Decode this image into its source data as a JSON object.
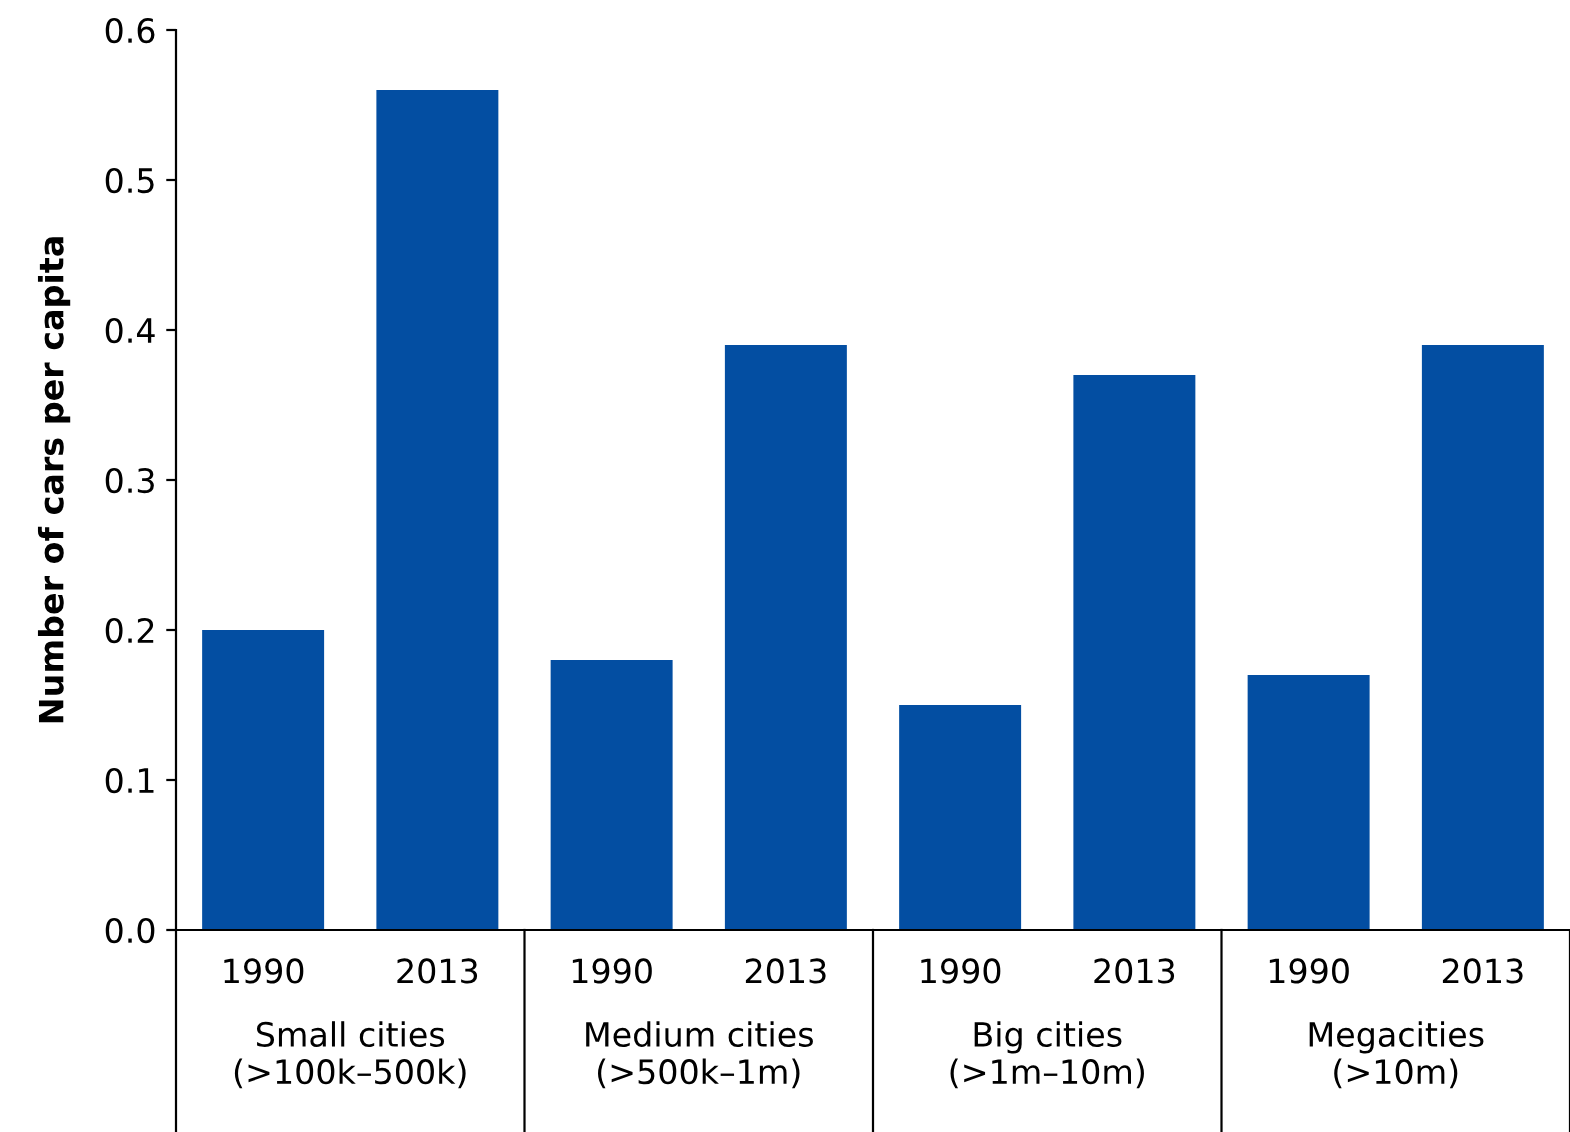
{
  "chart_data": {
    "type": "bar",
    "ylabel": "Number of cars per capita",
    "categories": [
      "1990",
      "2013",
      "1990",
      "2013",
      "1990",
      "2013",
      "1990",
      "2013"
    ],
    "values": [
      0.2,
      0.56,
      0.18,
      0.39,
      0.15,
      0.37,
      0.17,
      0.39
    ],
    "color": "#034ea2",
    "ylim": [
      0,
      0.6
    ],
    "yticks": [
      {
        "value": 0,
        "label": "0.0"
      },
      {
        "value": 0.1,
        "label": "0.1"
      },
      {
        "value": 0.2,
        "label": "0.2"
      },
      {
        "value": 0.3,
        "label": "0.3"
      },
      {
        "value": 0.4,
        "label": "0.4"
      },
      {
        "value": 0.5,
        "label": "0.5"
      },
      {
        "value": 0.6,
        "label": "0.6"
      }
    ],
    "annotations": [
      "Small cities\n(>100k–500k)",
      "Medium cities\n(>500k–1m)",
      "Big cities\n(>1m–10m)",
      "Megacities\n(>10m)"
    ],
    "grid": false,
    "legend": false
  }
}
